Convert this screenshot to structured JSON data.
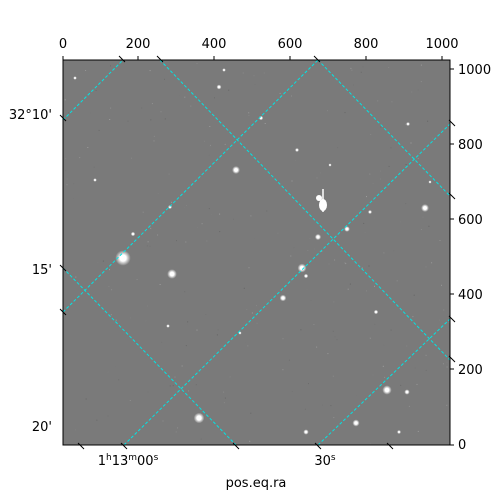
{
  "figure": {
    "pixel_axis": {
      "top_ticks": [
        "0",
        "200",
        "400",
        "600",
        "800",
        "1000"
      ],
      "right_ticks": [
        "0",
        "200",
        "400",
        "600",
        "800",
        "1000"
      ]
    },
    "world_axis": {
      "dec_ticks": [
        "32°10'",
        "15'",
        "20'"
      ],
      "ra_tick_1": {
        "prefix": "1",
        "h": "h",
        "mid": "13",
        "m": "m",
        "suffix": "00",
        "s": "s"
      },
      "ra_tick_2": {
        "value": "30",
        "s": "s"
      },
      "xlabel": "pos.eq.ra"
    },
    "image_background": "#7a7a7a",
    "grid_color": "#00e5e5"
  }
}
